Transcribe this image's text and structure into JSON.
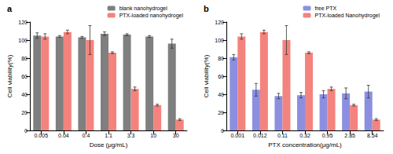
{
  "chart_data": [
    {
      "type": "bar",
      "title": "a",
      "x_label": "Dose (μg/mL)",
      "y_label": "Cell viability(%)",
      "categories": [
        "0.005",
        "0.04",
        "0.4",
        "1.1",
        "3.3",
        "10",
        "30"
      ],
      "series": [
        {
          "name": "blank nanohydrogel",
          "color": "#7f7f7f",
          "values": [
            105,
            104,
            103,
            107,
            106,
            104,
            96
          ],
          "errors": [
            3,
            1,
            1,
            2,
            1,
            1,
            5
          ]
        },
        {
          "name": "PTX-loaded nanohydrogel",
          "color": "#f4837d",
          "values": [
            104,
            109,
            100,
            86,
            46,
            28,
            12
          ],
          "errors": [
            3,
            2,
            16,
            1,
            2,
            1,
            1
          ]
        }
      ],
      "ylim": [
        0,
        120
      ],
      "yticks": [
        0,
        20,
        40,
        60,
        80,
        100,
        120
      ],
      "legend": "upper right",
      "grid": false
    },
    {
      "type": "bar",
      "title": "b",
      "x_label": "PTX concentration(μg/mL)",
      "y_label": "Cell viability(%)",
      "categories": [
        "0.001",
        "0.012",
        "0.11",
        "0.32",
        "0.95",
        "2.85",
        "8.54"
      ],
      "series": [
        {
          "name": "free PTX",
          "color": "#8c8fe0",
          "values": [
            81,
            45,
            38,
            39,
            40,
            41,
            43
          ],
          "errors": [
            3,
            7,
            3,
            3,
            4,
            6,
            7
          ]
        },
        {
          "name": "PTX-loaded Nanohydrogel",
          "color": "#f4837d",
          "values": [
            104,
            109,
            100,
            86,
            46,
            28,
            12
          ],
          "errors": [
            3,
            2,
            16,
            1,
            2,
            1,
            1
          ]
        }
      ],
      "ylim": [
        0,
        120
      ],
      "yticks": [
        0,
        20,
        40,
        60,
        80,
        100,
        120
      ],
      "legend": "upper right",
      "grid": false
    }
  ]
}
